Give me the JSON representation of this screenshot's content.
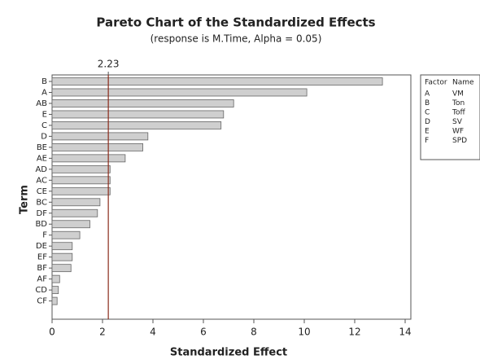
{
  "chart_data": {
    "type": "bar",
    "orientation": "horizontal",
    "title": "Pareto Chart of the Standardized Effects",
    "subtitle": "(response is M.Time, Alpha = 0.05)",
    "x_label": "Standardized Effect",
    "y_label": "Term",
    "categories": [
      "B",
      "A",
      "AB",
      "E",
      "C",
      "D",
      "BE",
      "AE",
      "AD",
      "AC",
      "CE",
      "BC",
      "DF",
      "BD",
      "F",
      "DE",
      "EF",
      "BF",
      "AF",
      "CD",
      "CF"
    ],
    "values": [
      13.1,
      10.1,
      7.2,
      6.8,
      6.7,
      3.8,
      3.6,
      2.9,
      2.3,
      2.3,
      2.3,
      1.9,
      1.8,
      1.5,
      1.1,
      0.8,
      0.8,
      0.75,
      0.3,
      0.25,
      0.2
    ],
    "color": "#cfcfcf",
    "xlim": [
      0,
      14
    ],
    "xticks": [
      0,
      2,
      4,
      6,
      8,
      10,
      12,
      14
    ],
    "reference_line": {
      "value": 2.23,
      "color": "#8b2a1a"
    },
    "factor_table": {
      "headers": [
        "Factor",
        "Name"
      ],
      "rows": [
        [
          "A",
          "VM"
        ],
        [
          "B",
          "Ton"
        ],
        [
          "C",
          "Toff"
        ],
        [
          "D",
          "SV"
        ],
        [
          "E",
          "WF"
        ],
        [
          "F",
          "SPD"
        ]
      ]
    }
  }
}
